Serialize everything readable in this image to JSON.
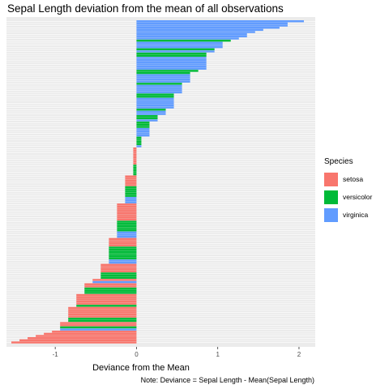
{
  "chart_data": {
    "type": "bar",
    "orientation": "horizontal",
    "title": "Sepal Length deviation from the mean of all observations",
    "xlabel": "Deviance from the Mean",
    "caption": "Note: Deviance = Sepal Length - Mean(Sepal Length)",
    "xlim": [
      -1.6,
      2.2
    ],
    "x_ticks": [
      {
        "value": -1,
        "label": "-1"
      },
      {
        "value": 0,
        "label": "0"
      },
      {
        "value": 1,
        "label": "1"
      },
      {
        "value": 2,
        "label": "2"
      }
    ],
    "grid": "horizontal lines per observation",
    "legend": {
      "title": "Species",
      "placement": "right",
      "entries": [
        {
          "name": "setosa",
          "color": "#f8766d"
        },
        {
          "name": "versicolor",
          "color": "#00ba38"
        },
        {
          "name": "virginica",
          "color": "#619cff"
        }
      ]
    },
    "series": [
      {
        "name": "setosa",
        "color": "#f8766d",
        "values": [
          -0.04,
          -0.04,
          -0.04,
          -0.04,
          -0.04,
          -0.04,
          -0.04,
          -0.04,
          -0.14,
          -0.14,
          -0.14,
          -0.14,
          -0.14,
          -0.24,
          -0.24,
          -0.24,
          -0.24,
          -0.24,
          -0.24,
          -0.24,
          -0.24,
          -0.34,
          -0.34,
          -0.34,
          -0.34,
          -0.44,
          -0.44,
          -0.44,
          -0.44,
          -0.54,
          -0.64,
          -0.64,
          -0.74,
          -0.74,
          -0.74,
          -0.74,
          -0.74,
          -0.84,
          -0.84,
          -0.84,
          -0.84,
          -0.84,
          -0.94,
          -0.94,
          -1.04,
          -1.14,
          -1.24,
          -1.34,
          -1.44,
          -1.54
        ]
      },
      {
        "name": "versicolor",
        "color": "#00ba38",
        "values": [
          1.16,
          0.96,
          0.86,
          0.86,
          0.76,
          0.66,
          0.56,
          0.46,
          0.46,
          0.36,
          0.26,
          0.26,
          0.16,
          0.16,
          0.16,
          0.06,
          0.06,
          0.06,
          0.06,
          -0.04,
          -0.04,
          -0.04,
          -0.04,
          -0.04,
          -0.14,
          -0.14,
          -0.14,
          -0.14,
          -0.14,
          -0.24,
          -0.24,
          -0.24,
          -0.24,
          -0.24,
          -0.34,
          -0.34,
          -0.34,
          -0.34,
          -0.34,
          -0.34,
          -0.44,
          -0.44,
          -0.44,
          -0.64,
          -0.64,
          -0.64,
          -0.74,
          -0.84,
          -0.84,
          -0.94
        ]
      },
      {
        "name": "virginica",
        "color": "#619cff",
        "values": [
          2.06,
          1.86,
          1.86,
          1.76,
          1.56,
          1.46,
          1.36,
          1.36,
          1.26,
          1.06,
          1.06,
          1.06,
          0.96,
          0.86,
          0.86,
          0.86,
          0.86,
          0.86,
          0.86,
          0.66,
          0.66,
          0.66,
          0.66,
          0.56,
          0.56,
          0.56,
          0.56,
          0.46,
          0.46,
          0.46,
          0.46,
          0.46,
          0.36,
          0.36,
          0.26,
          0.16,
          0.16,
          0.16,
          0.16,
          0.06,
          -0.14,
          -0.14,
          -0.14,
          -0.24,
          -0.24,
          -0.24,
          -0.34,
          -0.34,
          -0.54,
          -0.94
        ]
      }
    ]
  }
}
